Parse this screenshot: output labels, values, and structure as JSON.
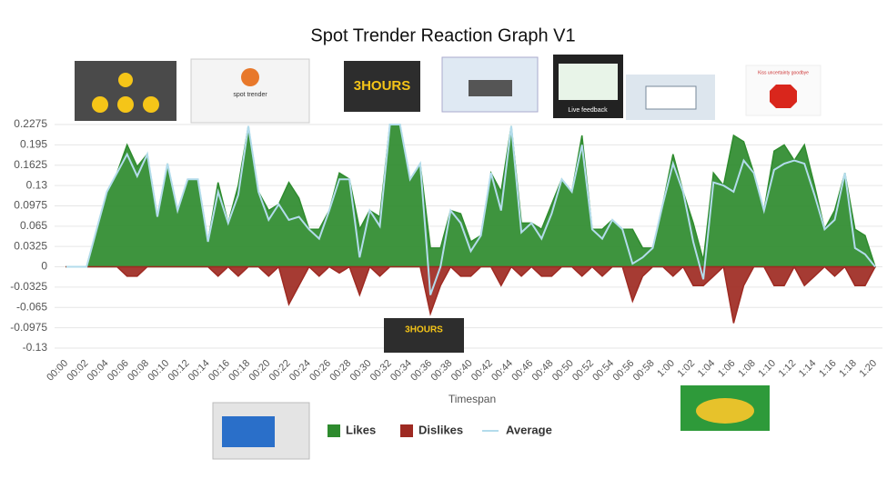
{
  "chart_data": {
    "type": "area",
    "title": "Spot Trender Reaction Graph V1",
    "x_label": "Timespan",
    "categories": [
      "00:00",
      null,
      "00:02",
      null,
      "00:04",
      null,
      "00:06",
      null,
      "00:08",
      null,
      "00:10",
      null,
      "00:12",
      null,
      "00:14",
      null,
      "00:16",
      null,
      "00:18",
      null,
      "00:20",
      null,
      "00:22",
      null,
      "00:24",
      null,
      "00:26",
      null,
      "00:28",
      null,
      "00:30",
      null,
      "00:32",
      null,
      "00:34",
      null,
      "00:36",
      null,
      "00:38",
      null,
      "00:40",
      null,
      "00:42",
      null,
      "00:44",
      null,
      "00:46",
      null,
      "00:48",
      null,
      "00:50",
      null,
      "00:52",
      null,
      "00:54",
      null,
      "00:56",
      null,
      "00:58",
      null,
      "1:00",
      null,
      "1:02",
      null,
      "1:04",
      null,
      "1:06",
      null,
      "1:08",
      null,
      "1:10",
      null,
      "1:12",
      null,
      "1:14",
      null,
      "1:16",
      null,
      "1:18",
      null,
      "1:20"
    ],
    "series": [
      {
        "name": "Likes",
        "color": "#2e8b2e",
        "values": [
          0,
          0,
          0,
          0.06,
          0.12,
          0.15,
          0.195,
          0.16,
          0.18,
          0.08,
          0.165,
          0.09,
          0.14,
          0.14,
          0.04,
          0.135,
          0.07,
          0.13,
          0.225,
          0.12,
          0.09,
          0.1,
          0.135,
          0.11,
          0.06,
          0.06,
          0.09,
          0.15,
          0.14,
          0.06,
          0.09,
          0.08,
          0.2275,
          0.2275,
          0.14,
          0.165,
          0.03,
          0.03,
          0.09,
          0.085,
          0.04,
          0.05,
          0.15,
          0.12,
          0.225,
          0.07,
          0.07,
          0.06,
          0.1,
          0.14,
          0.12,
          0.21,
          0.06,
          0.06,
          0.075,
          0.06,
          0.06,
          0.03,
          0.03,
          0.1,
          0.18,
          0.12,
          0.07,
          0.01,
          0.15,
          0.13,
          0.21,
          0.2,
          0.15,
          0.09,
          0.185,
          0.195,
          0.17,
          0.195,
          0.13,
          0.06,
          0.09,
          0.15,
          0.06,
          0.05,
          0
        ]
      },
      {
        "name": "Dislikes",
        "color": "#9e2a22",
        "values": [
          0,
          0,
          0,
          0,
          0,
          0,
          -0.015,
          -0.015,
          0,
          0,
          0,
          0,
          0,
          0,
          0,
          -0.015,
          0,
          -0.015,
          0,
          0,
          -0.015,
          0,
          -0.06,
          -0.03,
          0,
          -0.015,
          0,
          -0.01,
          0,
          -0.045,
          0,
          -0.015,
          0,
          0,
          0,
          0,
          -0.075,
          -0.03,
          0,
          -0.015,
          -0.015,
          0,
          0,
          -0.03,
          0,
          -0.015,
          0,
          -0.015,
          -0.015,
          0,
          0,
          -0.015,
          0,
          -0.015,
          0,
          0,
          -0.055,
          -0.015,
          0,
          0,
          -0.015,
          0,
          -0.03,
          -0.03,
          -0.015,
          0,
          -0.09,
          -0.03,
          0,
          0,
          -0.03,
          -0.03,
          0,
          -0.03,
          -0.015,
          0,
          -0.015,
          0,
          -0.03,
          -0.03,
          0
        ]
      },
      {
        "name": "Average",
        "color": "#b3dcec",
        "values": [
          0,
          0,
          0,
          0.06,
          0.12,
          0.15,
          0.18,
          0.145,
          0.18,
          0.08,
          0.165,
          0.09,
          0.14,
          0.14,
          0.04,
          0.12,
          0.07,
          0.115,
          0.225,
          0.12,
          0.075,
          0.1,
          0.075,
          0.08,
          0.06,
          0.045,
          0.09,
          0.14,
          0.14,
          0.015,
          0.09,
          0.065,
          0.2275,
          0.2275,
          0.14,
          0.165,
          -0.045,
          0,
          0.09,
          0.07,
          0.025,
          0.05,
          0.15,
          0.09,
          0.225,
          0.055,
          0.07,
          0.045,
          0.085,
          0.14,
          0.12,
          0.195,
          0.06,
          0.045,
          0.075,
          0.06,
          0.005,
          0.015,
          0.03,
          0.1,
          0.165,
          0.12,
          0.04,
          -0.02,
          0.135,
          0.13,
          0.12,
          0.17,
          0.15,
          0.09,
          0.155,
          0.165,
          0.17,
          0.165,
          0.115,
          0.06,
          0.075,
          0.15,
          0.03,
          0.02,
          0
        ]
      }
    ],
    "ylim": [
      -0.13,
      0.2275
    ],
    "yticks": [
      0.2275,
      0.195,
      0.1625,
      0.13,
      0.0975,
      0.065,
      0.0325,
      0,
      -0.0325,
      -0.065,
      -0.0975,
      -0.13
    ],
    "grid": true,
    "legend": "bottom"
  },
  "thumbnail_texts": [
    "spot trender",
    "3HOURS",
    "Live feedback",
    "Kiss uncertainty goodbye",
    "3HOURS"
  ]
}
